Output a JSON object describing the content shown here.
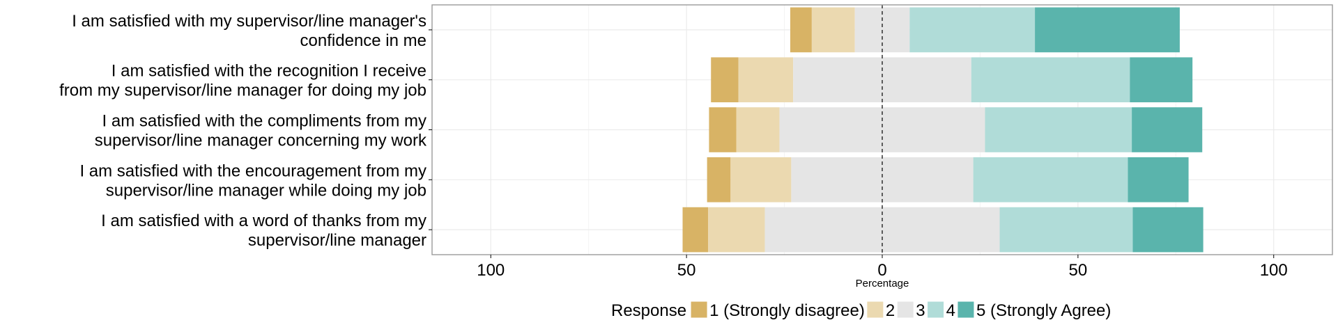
{
  "chart_data": {
    "type": "bar",
    "orientation": "horizontal",
    "stacked": "diverging",
    "xlabel": "Percentage",
    "xlim": [
      -115,
      115
    ],
    "xticks": [
      -100,
      -50,
      0,
      50,
      100
    ],
    "xtick_labels": [
      "100",
      "50",
      "0",
      "50",
      "100"
    ],
    "grid": true,
    "center_line": 0,
    "categories": [
      [
        "I am satisfied with my supervisor/line manager's",
        "confidence in me"
      ],
      [
        "I am satisfied with the recognition I receive",
        "from my supervisor/line manager for doing my job"
      ],
      [
        "I am satisfied with the compliments from my",
        "supervisor/line manager concerning my work"
      ],
      [
        "I am satisfied with the encouragement from my",
        "supervisor/line manager while doing my job"
      ],
      [
        "I am satisfied with a word of thanks from my",
        "supervisor/line manager"
      ]
    ],
    "series": [
      {
        "name": "1 (Strongly disagree)",
        "color": "#D8B365",
        "values": [
          5.5,
          7,
          7,
          6,
          6.5
        ]
      },
      {
        "name": "2",
        "color": "#EBD9B0",
        "values": [
          11,
          14,
          11,
          15.5,
          14.5
        ]
      },
      {
        "name": "3",
        "color": "#E5E5E5",
        "values": [
          14,
          45.5,
          52.5,
          46.5,
          60
        ]
      },
      {
        "name": "4",
        "color": "#B0DCD8",
        "values": [
          32,
          40.5,
          37.5,
          39.5,
          34
        ]
      },
      {
        "name": "5 (Strongly Agree)",
        "color": "#5AB4AC",
        "values": [
          37,
          16,
          18,
          15.5,
          18
        ]
      }
    ],
    "legend": {
      "title": "Response",
      "position": "bottom"
    }
  }
}
